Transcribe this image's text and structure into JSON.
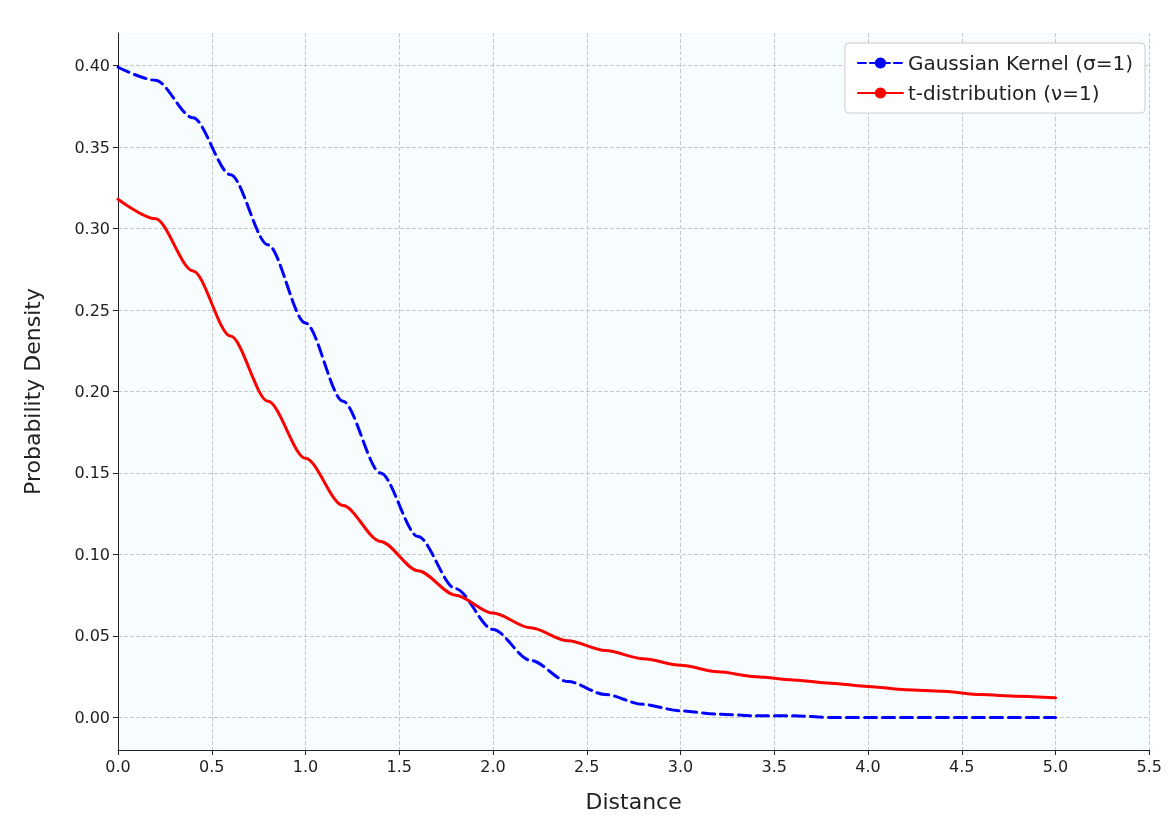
{
  "chart_data": {
    "type": "line",
    "xlabel": "Distance",
    "ylabel": "Probability Density",
    "x": [
      0,
      0.2,
      0.4,
      0.6,
      0.8,
      1.0,
      1.2,
      1.4,
      1.6,
      1.8,
      2.0,
      2.2,
      2.4,
      2.6,
      2.8,
      3.0,
      3.2,
      3.4,
      3.6,
      3.8,
      4.0,
      4.2,
      4.4,
      4.6,
      4.8,
      5.0
    ],
    "series": [
      {
        "name": "Gaussian Kernel (σ=1)",
        "color": "#0000ff",
        "line_style": "dashed",
        "values": [
          0.399,
          0.391,
          0.368,
          0.333,
          0.29,
          0.242,
          0.194,
          0.15,
          0.111,
          0.079,
          0.054,
          0.035,
          0.022,
          0.014,
          0.008,
          0.004,
          0.002,
          0.001,
          0.001,
          0.0,
          0.0,
          0.0,
          0.0,
          0.0,
          0.0,
          0.0
        ]
      },
      {
        "name": "t-distribution (ν=1)",
        "color": "#ff0000",
        "line_style": "solid",
        "values": [
          0.318,
          0.306,
          0.274,
          0.234,
          0.194,
          0.159,
          0.13,
          0.108,
          0.09,
          0.075,
          0.064,
          0.055,
          0.047,
          0.041,
          0.036,
          0.032,
          0.028,
          0.025,
          0.023,
          0.021,
          0.019,
          0.017,
          0.016,
          0.014,
          0.013,
          0.012
        ]
      }
    ],
    "xlim": [
      0,
      5.5
    ],
    "xticks": [
      {
        "value": 0,
        "label": "0.0"
      },
      {
        "value": 0.5,
        "label": "0.5"
      },
      {
        "value": 1,
        "label": "1.0"
      },
      {
        "value": 1.5,
        "label": "1.5"
      },
      {
        "value": 2,
        "label": "2.0"
      },
      {
        "value": 2.5,
        "label": "2.5"
      },
      {
        "value": 3,
        "label": "3.0"
      },
      {
        "value": 3.5,
        "label": "3.5"
      },
      {
        "value": 4,
        "label": "4.0"
      },
      {
        "value": 4.5,
        "label": "4.5"
      },
      {
        "value": 5,
        "label": "5.0"
      },
      {
        "value": 5.5,
        "label": "5.5"
      }
    ],
    "ylim": [
      -0.02,
      0.42
    ],
    "yticks": [
      {
        "value": 0,
        "label": "0.00"
      },
      {
        "value": 0.05,
        "label": "0.05"
      },
      {
        "value": 0.1,
        "label": "0.10"
      },
      {
        "value": 0.15,
        "label": "0.15"
      },
      {
        "value": 0.2,
        "label": "0.20"
      },
      {
        "value": 0.25,
        "label": "0.25"
      },
      {
        "value": 0.3,
        "label": "0.30"
      },
      {
        "value": 0.35,
        "label": "0.35"
      },
      {
        "value": 0.4,
        "label": "0.40"
      }
    ],
    "grid": true,
    "legend": "top right"
  }
}
